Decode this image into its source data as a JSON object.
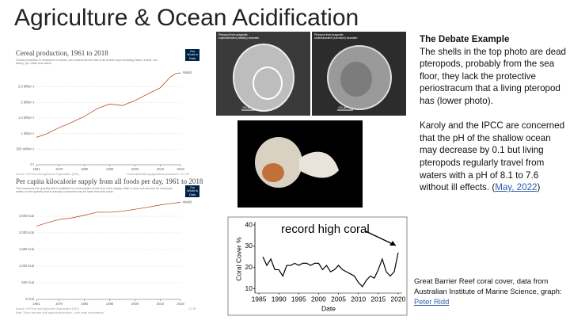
{
  "title": "Agriculture & Ocean Acidification",
  "owid": [
    {
      "subtitle": "Cereal production is measured in tonnes, and represents the total of all cereal crops including maize, wheat, rice, barley, rye, millet and others.",
      "source": "Source: UN Food and Agriculture Organization (FAO)",
      "url": "OurWorldInData.org/agricultural-production/ • CC BY",
      "logo": "Our World in Data"
    },
    {
      "subtitle": "This measures the quantity that is available for consumption at the end of the supply chain. It does not account for consumer waste, so the quantity that is actually consumed may be lower than this value.",
      "source": "Source: UN Food and Agriculture Organization (FAO)",
      "note": "Note: This is the total of all agricultural produce – both crops and livestock.",
      "url": "CC BY",
      "logo": "Our World in Data"
    }
  ],
  "photos": {
    "healthy": "Pteropod from aragonite supersaturated (healthy) seawater",
    "corrosive": "Pteropod from aragonite undersaturated (corrosive) seawater",
    "scale": "100 µm"
  },
  "chart_data": [
    {
      "type": "line",
      "title": "Cereal production, 1961 to 2018",
      "x": [
        1961,
        1965,
        1970,
        1975,
        1980,
        1985,
        1990,
        1995,
        2000,
        2005,
        2010,
        2014,
        2016,
        2018
      ],
      "series": [
        {
          "name": "World",
          "color": "#b13507",
          "values": [
            880000000,
            990000000,
            1190000000,
            1360000000,
            1550000000,
            1800000000,
            1950000000,
            1900000000,
            2060000000,
            2270000000,
            2470000000,
            2820000000,
            2920000000,
            2950000000
          ]
        }
      ],
      "xlim": [
        1961,
        2018
      ],
      "xticks": [
        1961,
        1970,
        1980,
        1990,
        2000,
        2010,
        2018
      ],
      "ylim": [
        0,
        3100000000
      ],
      "yticks": [
        {
          "value": 0,
          "label": "0 t"
        },
        {
          "value": 500000000,
          "label": "500 million t"
        },
        {
          "value": 1000000000,
          "label": "1 billion t"
        },
        {
          "value": 1500000000,
          "label": "1.5 billion t"
        },
        {
          "value": 2000000000,
          "label": "2 billion t"
        },
        {
          "value": 2500000000,
          "label": "2.5 billion t"
        }
      ],
      "grid": true
    },
    {
      "type": "line",
      "title": "Per capita kilocalorie supply from all foods per day, 1961 to 2018",
      "x": [
        1961,
        1965,
        1970,
        1975,
        1980,
        1985,
        1990,
        1995,
        2000,
        2005,
        2010,
        2014,
        2018
      ],
      "series": [
        {
          "name": "World",
          "color": "#b13507",
          "values": [
            2200,
            2300,
            2400,
            2450,
            2530,
            2620,
            2620,
            2650,
            2710,
            2770,
            2840,
            2880,
            2920
          ]
        }
      ],
      "xlim": [
        1961,
        2018
      ],
      "xticks": [
        1961,
        1970,
        1980,
        1990,
        2000,
        2010,
        2018
      ],
      "ylim": [
        0,
        3000
      ],
      "yticks": [
        {
          "value": 0,
          "label": "0 kcal"
        },
        {
          "value": 500,
          "label": "500 kcal"
        },
        {
          "value": 1000,
          "label": "1,000 kcal"
        },
        {
          "value": 1500,
          "label": "1,500 kcal"
        },
        {
          "value": 2000,
          "label": "2,000 kcal"
        },
        {
          "value": 2500,
          "label": "2,500 kcal"
        }
      ],
      "grid": true
    },
    {
      "type": "line",
      "annotation": "record high coral",
      "xlabel": "Date",
      "ylabel": "Coral Cover %",
      "x": [
        1986,
        1987,
        1988,
        1989,
        1990,
        1991,
        1992,
        1993,
        1994,
        1995,
        1996,
        1997,
        1998,
        1999,
        2000,
        2001,
        2002,
        2003,
        2004,
        2005,
        2006,
        2007,
        2008,
        2009,
        2010,
        2011,
        2012,
        2013,
        2014,
        2015,
        2016,
        2017,
        2018,
        2019,
        2020
      ],
      "values": [
        25,
        21,
        24,
        19,
        19,
        16,
        21,
        21,
        22,
        21,
        22,
        22,
        21,
        22,
        22,
        19,
        21,
        18,
        19,
        21,
        19,
        18,
        17,
        16,
        13,
        11,
        14,
        16,
        15,
        19,
        24,
        18,
        16,
        18,
        27
      ],
      "color": "#000000",
      "xlim": [
        1984,
        2021
      ],
      "xticks": [
        1985,
        1990,
        1995,
        2000,
        2005,
        2010,
        2015,
        2020
      ],
      "ylim": [
        8,
        40
      ],
      "yticks": [
        10,
        20,
        30,
        40
      ],
      "grid": false
    }
  ],
  "debate": {
    "heading": "The Debate Example",
    "p1": "The shells in the top photo are dead pteropods, probably from the sea floor, they lack the protective periostracum that a living pteropod has (lower photo).",
    "p2": "Karoly and the IPCC are concerned that the pH of the shallow ocean may decrease by 0.1 but living pteropods regularly travel from waters with a pH of 8.1 to 7.6 without ill effects.",
    "open": "(",
    "link": "May, 2022",
    "close": ")"
  },
  "reef": {
    "caption": "Great Barrier Reef coral cover, data from Australian Institute of Marine Science, graph:",
    "link": "Peter Ridd"
  }
}
